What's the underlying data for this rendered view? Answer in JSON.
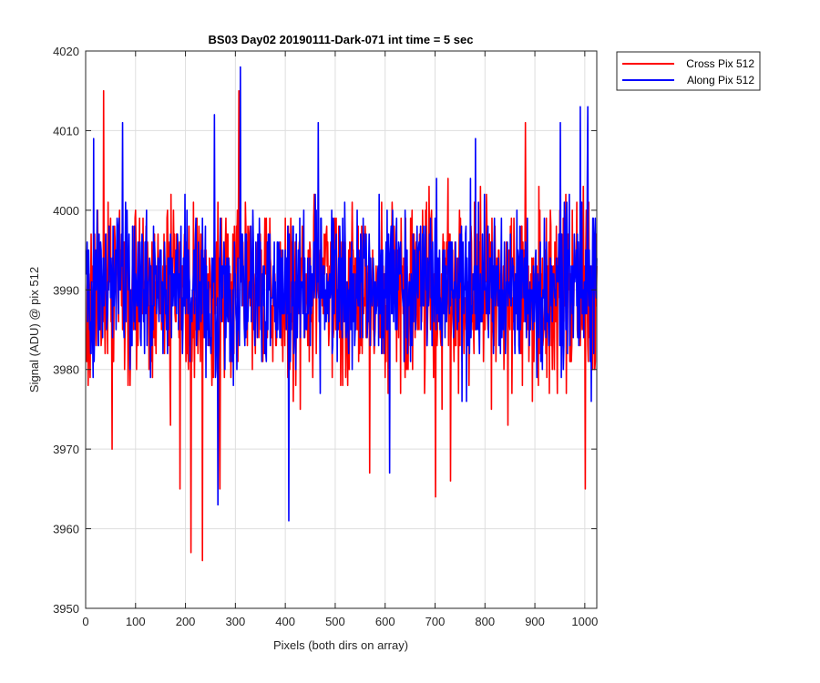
{
  "chart_data": {
    "type": "line",
    "title": "BS03 Day02 20190111-Dark-071 int time = 5 sec",
    "xlabel": "Pixels (both dirs on array)",
    "ylabel": "Signal (ADU) @ pix 512",
    "xlim": [
      0,
      1024
    ],
    "ylim": [
      3950,
      4020
    ],
    "xticks": [
      0,
      100,
      200,
      300,
      400,
      500,
      600,
      700,
      800,
      900,
      1000
    ],
    "yticks": [
      3950,
      3960,
      3970,
      3980,
      3990,
      4000,
      4010,
      4020
    ],
    "grid": true,
    "legend_position": "outside-top-right",
    "series_summary": "1024 noisy samples per series, mean about 3990 ADU, typical range 3975 to 4003",
    "series": [
      {
        "name": "Cross Pix 512",
        "color": "#ff0000",
        "mean": 3990,
        "std": 6,
        "extremes": [
          {
            "x": 35,
            "y": 4015
          },
          {
            "x": 52,
            "y": 3970
          },
          {
            "x": 188,
            "y": 3965
          },
          {
            "x": 210,
            "y": 3957
          },
          {
            "x": 233,
            "y": 3956
          },
          {
            "x": 268,
            "y": 3965
          },
          {
            "x": 306,
            "y": 4015
          },
          {
            "x": 568,
            "y": 3967
          },
          {
            "x": 700,
            "y": 3964
          },
          {
            "x": 730,
            "y": 3966
          },
          {
            "x": 880,
            "y": 4011
          },
          {
            "x": 1000,
            "y": 3965
          }
        ]
      },
      {
        "name": "Along Pix 512",
        "color": "#0000ff",
        "mean": 3990,
        "std": 5,
        "extremes": [
          {
            "x": 15,
            "y": 4009
          },
          {
            "x": 73,
            "y": 4011
          },
          {
            "x": 257,
            "y": 4012
          },
          {
            "x": 264,
            "y": 3963
          },
          {
            "x": 309,
            "y": 4018
          },
          {
            "x": 406,
            "y": 3961
          },
          {
            "x": 465,
            "y": 4011
          },
          {
            "x": 608,
            "y": 3967
          },
          {
            "x": 780,
            "y": 4009
          },
          {
            "x": 950,
            "y": 4011
          },
          {
            "x": 990,
            "y": 4013
          },
          {
            "x": 1005,
            "y": 4013
          }
        ]
      }
    ]
  }
}
